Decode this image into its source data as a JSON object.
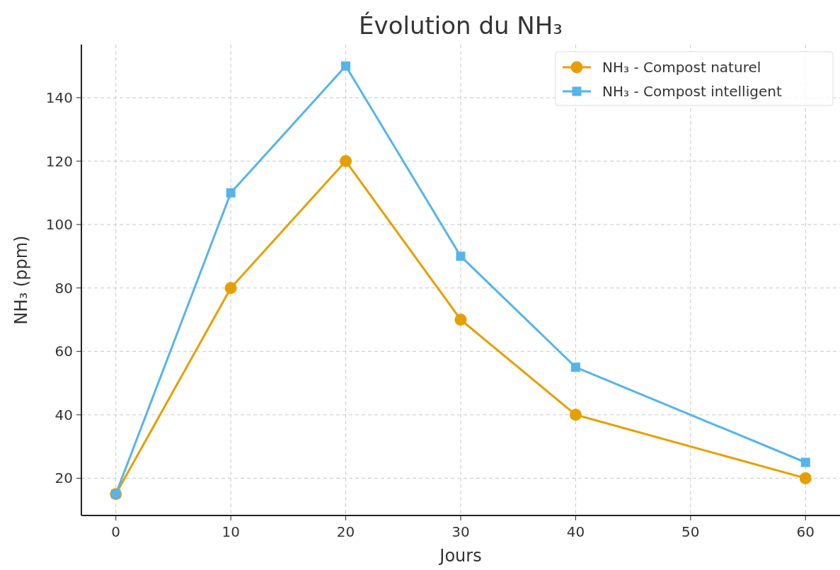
{
  "chart_data": {
    "type": "line",
    "title": "Évolution du NH₃",
    "xlabel": "Jours",
    "ylabel": "NH₃ (ppm)",
    "x": [
      0,
      10,
      20,
      30,
      40,
      60
    ],
    "series": [
      {
        "name": "NH₃ - Compost naturel",
        "color": "#e69f00",
        "marker": "circle",
        "values": [
          15,
          80,
          120,
          70,
          40,
          20
        ]
      },
      {
        "name": "NH₃ - Compost intelligent",
        "color": "#56b4e9",
        "marker": "square",
        "values": [
          15,
          110,
          150,
          90,
          55,
          25
        ]
      }
    ],
    "xlim": [
      -3,
      63
    ],
    "xticks": [
      0,
      10,
      20,
      30,
      40,
      50,
      60
    ],
    "ylim": [
      8.25,
      156.75
    ],
    "yticks": [
      20,
      40,
      60,
      80,
      100,
      120,
      140
    ],
    "grid": true,
    "legend": "top right",
    "line_style": "solid"
  }
}
